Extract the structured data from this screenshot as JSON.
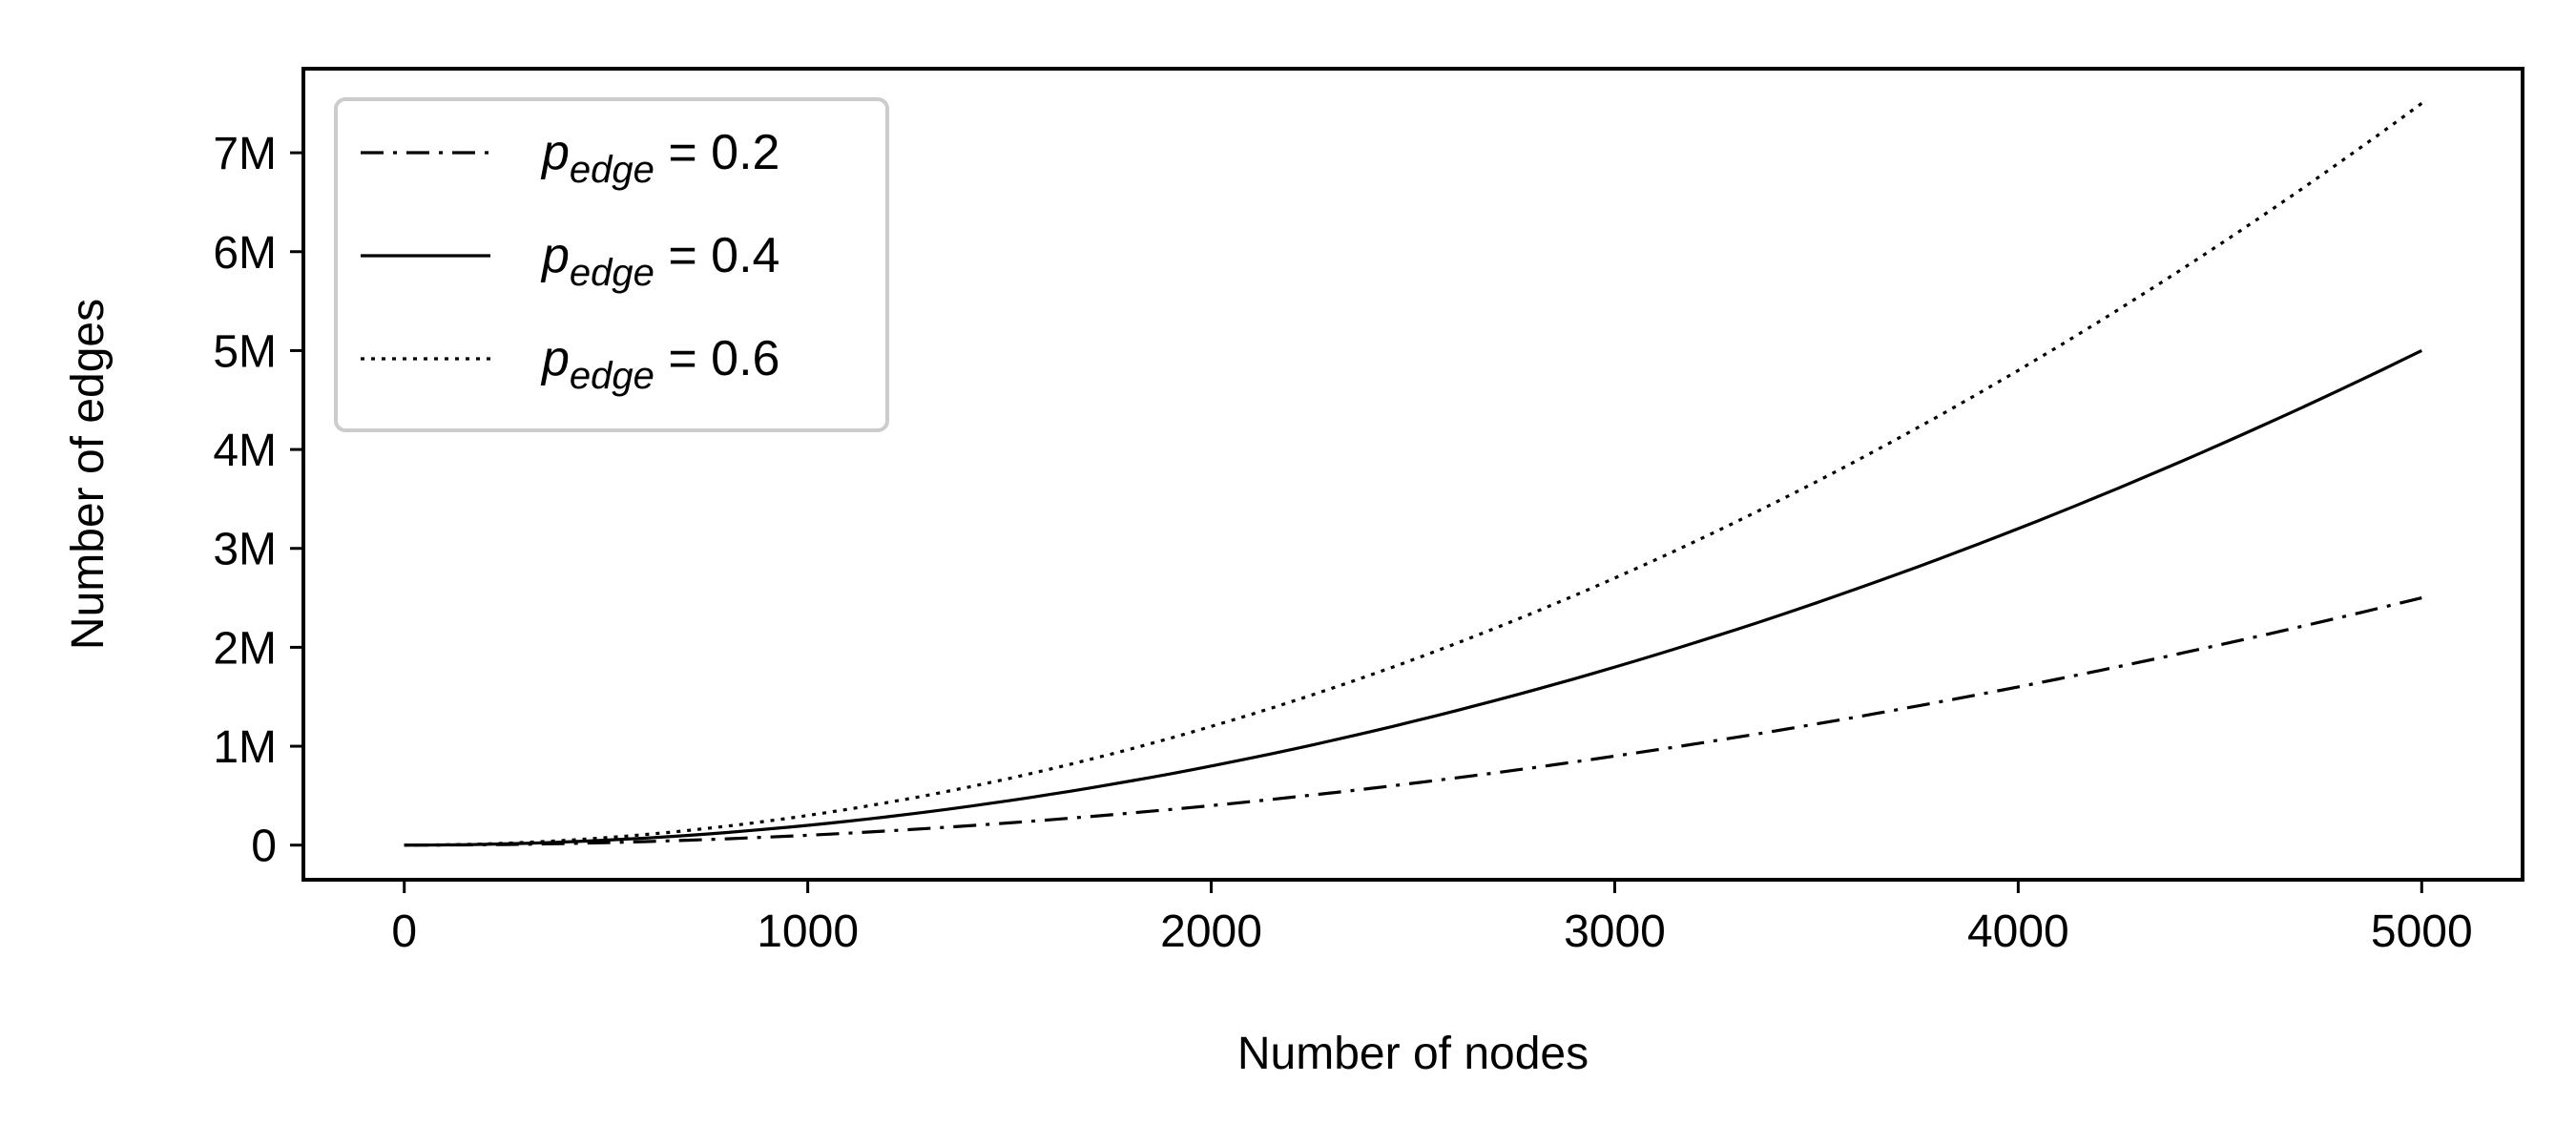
{
  "chart_data": {
    "type": "line",
    "xlabel": "Number of nodes",
    "ylabel": "Number of edges",
    "xlim": [
      -250,
      5250
    ],
    "ylim": [
      -350000,
      7850000
    ],
    "xticks": [
      0,
      1000,
      2000,
      3000,
      4000,
      5000
    ],
    "xtick_labels": [
      "0",
      "1000",
      "2000",
      "3000",
      "4000",
      "5000"
    ],
    "yticks": [
      0,
      1000000,
      2000000,
      3000000,
      4000000,
      5000000,
      6000000,
      7000000
    ],
    "ytick_labels": [
      "0",
      "1M",
      "2M",
      "3M",
      "4M",
      "5M",
      "6M",
      "7M"
    ],
    "grid": false,
    "legend_position": "top-left",
    "x": [
      0,
      500,
      1000,
      1500,
      2000,
      2500,
      3000,
      3500,
      4000,
      4500,
      5000
    ],
    "series": [
      {
        "name": "p_edge = 0.2",
        "legend_base": "p",
        "legend_sub": "edge",
        "legend_value": " = 0.2",
        "line_style": "dash-dot",
        "color": "#000000",
        "values": [
          0,
          25000,
          100000,
          225000,
          400000,
          625000,
          900000,
          1225000,
          1600000,
          2025000,
          2500000
        ]
      },
      {
        "name": "p_edge = 0.4",
        "legend_base": "p",
        "legend_sub": "edge",
        "legend_value": " = 0.4",
        "line_style": "solid",
        "color": "#000000",
        "values": [
          0,
          50000,
          200000,
          450000,
          800000,
          1250000,
          1800000,
          2450000,
          3200000,
          4050000,
          5000000
        ]
      },
      {
        "name": "p_edge = 0.6",
        "legend_base": "p",
        "legend_sub": "edge",
        "legend_value": " = 0.6",
        "line_style": "dotted",
        "color": "#000000",
        "values": [
          0,
          75000,
          300000,
          675000,
          1200000,
          1875000,
          2700000,
          3675000,
          4800000,
          6075000,
          7500000
        ]
      }
    ]
  }
}
